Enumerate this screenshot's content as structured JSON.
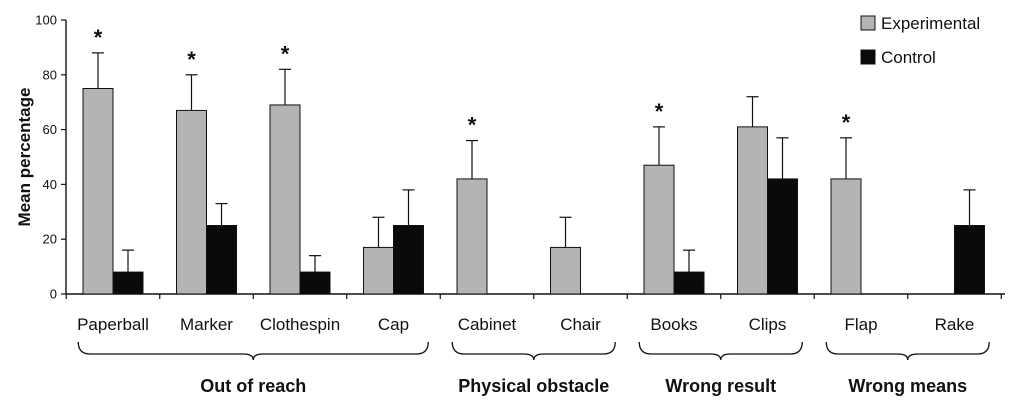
{
  "chart_data": {
    "type": "bar",
    "ylabel": "Mean percentage",
    "xlabel": "",
    "ylim": [
      0,
      100
    ],
    "yticks": [
      0,
      20,
      40,
      60,
      80,
      100
    ],
    "categories": [
      "Paperball",
      "Marker",
      "Clothespin",
      "Cap",
      "Cabinet",
      "Chair",
      "Books",
      "Clips",
      "Flap",
      "Rake"
    ],
    "series": [
      {
        "name": "Experimental",
        "color": "#b4b4b4",
        "values": [
          75,
          67,
          69,
          17,
          42,
          17,
          47,
          61,
          42,
          0
        ],
        "error": [
          13,
          13,
          13,
          11,
          14,
          11,
          14,
          11,
          15,
          0
        ]
      },
      {
        "name": "Control",
        "color": "#0a0a0a",
        "values": [
          8,
          25,
          8,
          25,
          0,
          0,
          8,
          42,
          0,
          25
        ],
        "error": [
          8,
          8,
          6,
          13,
          0,
          0,
          8,
          15,
          0,
          13
        ]
      }
    ],
    "significance": [
      "*",
      "*",
      "*",
      "",
      "*",
      "",
      "*",
      "",
      "*",
      ""
    ],
    "groups": [
      {
        "label": "Out of reach",
        "categories": [
          "Paperball",
          "Marker",
          "Clothespin",
          "Cap"
        ]
      },
      {
        "label": "Physical obstacle",
        "categories": [
          "Cabinet",
          "Chair"
        ]
      },
      {
        "label": "Wrong result",
        "categories": [
          "Books",
          "Clips"
        ]
      },
      {
        "label": "Wrong means",
        "categories": [
          "Flap",
          "Rake"
        ]
      }
    ],
    "legend_position": "top-right",
    "grid": false
  }
}
